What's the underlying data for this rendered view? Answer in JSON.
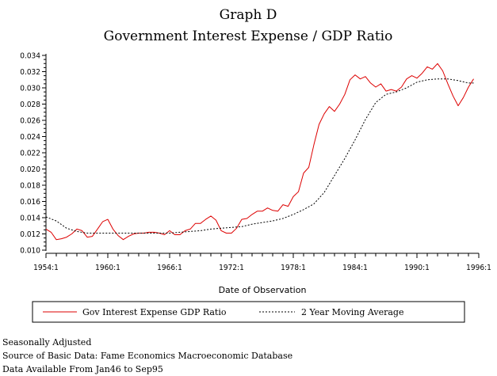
{
  "chart_data": {
    "type": "line",
    "title": "Graph D",
    "subtitle": "Government Interest Expense / GDP Ratio",
    "xlabel": "Date of Observation",
    "ylabel": "",
    "x_ticks": [
      "1954:1",
      "1960:1",
      "1966:1",
      "1972:1",
      "1978:1",
      "1984:1",
      "1990:1",
      "1996:1"
    ],
    "y_ticks": [
      "0.010",
      "0.012",
      "0.014",
      "0.016",
      "0.018",
      "0.020",
      "0.022",
      "0.024",
      "0.026",
      "0.028",
      "0.030",
      "0.032",
      "0.034"
    ],
    "xlim": [
      1954.0,
      1996.0
    ],
    "ylim": [
      0.01,
      0.034
    ],
    "grid": false,
    "legend_position": "bottom",
    "series": [
      {
        "name": "Gov Interest Expense GDP Ratio",
        "color": "#dd0000",
        "style": "solid",
        "x": [
          1954.0,
          1954.5,
          1955.0,
          1955.5,
          1956.0,
          1956.5,
          1957.0,
          1957.5,
          1958.0,
          1958.5,
          1959.0,
          1959.5,
          1960.0,
          1960.5,
          1961.0,
          1961.5,
          1962.0,
          1962.5,
          1963.0,
          1963.5,
          1964.0,
          1964.5,
          1965.0,
          1965.5,
          1966.0,
          1966.5,
          1967.0,
          1967.5,
          1968.0,
          1968.5,
          1969.0,
          1969.5,
          1970.0,
          1970.5,
          1971.0,
          1971.5,
          1972.0,
          1972.5,
          1973.0,
          1973.5,
          1974.0,
          1974.5,
          1975.0,
          1975.5,
          1976.0,
          1976.5,
          1977.0,
          1977.5,
          1978.0,
          1978.5,
          1979.0,
          1979.5,
          1980.0,
          1980.5,
          1981.0,
          1981.5,
          1982.0,
          1982.5,
          1983.0,
          1983.5,
          1984.0,
          1984.5,
          1985.0,
          1985.5,
          1986.0,
          1986.5,
          1987.0,
          1987.5,
          1988.0,
          1988.5,
          1989.0,
          1989.5,
          1990.0,
          1990.5,
          1991.0,
          1991.5,
          1992.0,
          1992.5,
          1993.0,
          1993.5,
          1994.0,
          1994.5,
          1995.0,
          1995.5
        ],
        "values": [
          0.0126,
          0.0122,
          0.0113,
          0.0114,
          0.0116,
          0.012,
          0.0126,
          0.0124,
          0.0116,
          0.0117,
          0.0126,
          0.0135,
          0.0138,
          0.0126,
          0.0118,
          0.0113,
          0.0117,
          0.012,
          0.0121,
          0.0121,
          0.0122,
          0.0122,
          0.0121,
          0.0119,
          0.0124,
          0.0119,
          0.0119,
          0.0124,
          0.0126,
          0.0133,
          0.0133,
          0.0138,
          0.0142,
          0.0137,
          0.0124,
          0.0121,
          0.0121,
          0.0127,
          0.0138,
          0.0139,
          0.0144,
          0.0148,
          0.0148,
          0.0152,
          0.0149,
          0.0148,
          0.0156,
          0.0154,
          0.0166,
          0.0172,
          0.0195,
          0.0202,
          0.023,
          0.0255,
          0.0268,
          0.0277,
          0.0271,
          0.028,
          0.0292,
          0.031,
          0.0316,
          0.0311,
          0.0314,
          0.0306,
          0.0301,
          0.0305,
          0.0296,
          0.0298,
          0.0296,
          0.0301,
          0.0311,
          0.0315,
          0.0312,
          0.0318,
          0.0326,
          0.0323,
          0.033,
          0.0321,
          0.0305,
          0.029,
          0.0278,
          0.0288,
          0.0301,
          0.0311
        ]
      },
      {
        "name": "2 Year Moving Average",
        "color": "#000000",
        "style": "dashed",
        "x": [
          1954.0,
          1955.0,
          1956.0,
          1957.0,
          1958.0,
          1959.0,
          1960.0,
          1961.0,
          1962.0,
          1963.0,
          1964.0,
          1965.0,
          1966.0,
          1967.0,
          1968.0,
          1969.0,
          1970.0,
          1971.0,
          1972.0,
          1973.0,
          1974.0,
          1975.0,
          1976.0,
          1977.0,
          1978.0,
          1979.0,
          1980.0,
          1981.0,
          1982.0,
          1983.0,
          1984.0,
          1985.0,
          1986.0,
          1987.0,
          1988.0,
          1989.0,
          1990.0,
          1991.0,
          1992.0,
          1993.0,
          1994.0,
          1995.0,
          1995.5
        ],
        "values": [
          0.0141,
          0.0136,
          0.0127,
          0.0123,
          0.0121,
          0.0121,
          0.0121,
          0.0121,
          0.0121,
          0.0121,
          0.0121,
          0.0121,
          0.0121,
          0.0122,
          0.0123,
          0.0124,
          0.0126,
          0.0127,
          0.0128,
          0.0129,
          0.0132,
          0.0134,
          0.0136,
          0.0139,
          0.0144,
          0.015,
          0.0157,
          0.0171,
          0.0192,
          0.0213,
          0.0236,
          0.0261,
          0.0282,
          0.0292,
          0.0295,
          0.03,
          0.0307,
          0.031,
          0.0311,
          0.0311,
          0.0309,
          0.0306,
          0.0306
        ]
      }
    ]
  },
  "footnotes": {
    "line1": "Seasonally Adjusted",
    "line2": "Source of Basic Data: Fame Economics Macroeconomic Database",
    "line3": "Data Available From Jan46 to Sep95"
  }
}
